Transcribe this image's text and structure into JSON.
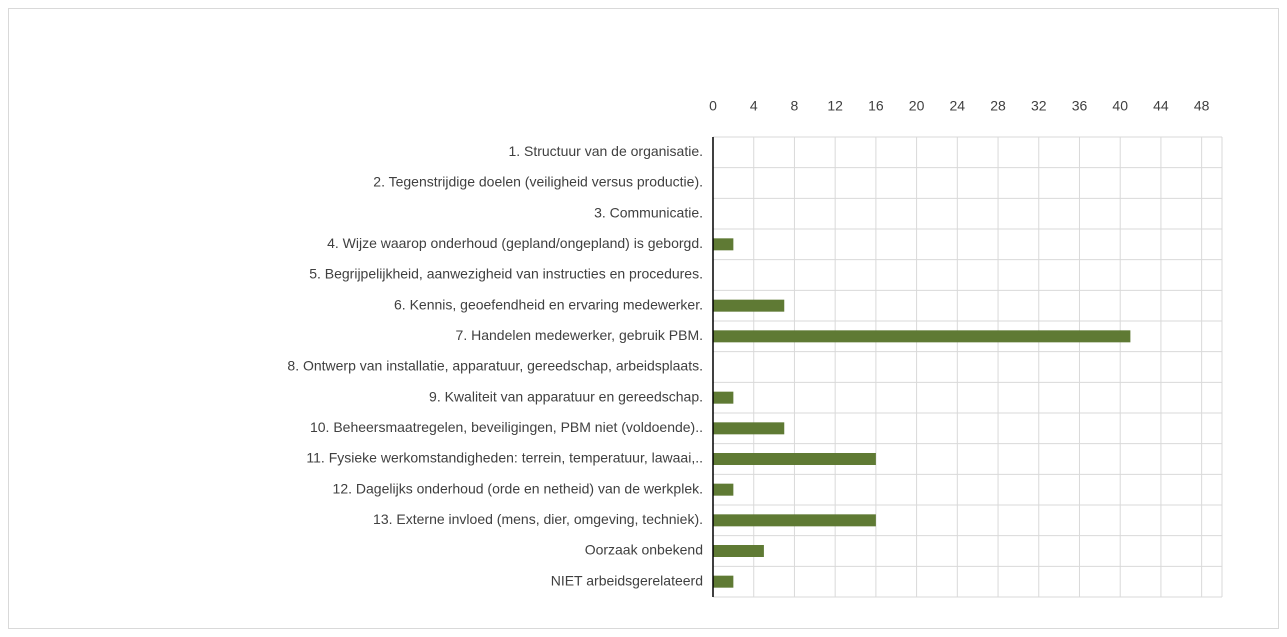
{
  "chart_data": {
    "type": "barh",
    "categories": [
      "1. Structuur van de organisatie.",
      "2. Tegenstrijdige doelen (veiligheid versus productie).",
      "3. Communicatie.",
      "4. Wijze waarop onderhoud (gepland/ongepland) is geborgd.",
      "5. Begrijpelijkheid, aanwezigheid van instructies en procedures.",
      "6. Kennis, geoefendheid en ervaring medewerker.",
      "7. Handelen medewerker, gebruik PBM.",
      "8. Ontwerp van installatie, apparatuur, gereedschap, arbeidsplaats.",
      "9. Kwaliteit van apparatuur en gereedschap.",
      "10. Beheersmaatregelen, beveiligingen, PBM niet (voldoende)..",
      "11. Fysieke werkomstandigheden: terrein, temperatuur, lawaai,..",
      "12. Dagelijks onderhoud (orde en netheid) van de werkplek.",
      "13. Externe invloed (mens, dier, omgeving, techniek).",
      "Oorzaak onbekend",
      "NIET arbeidsgerelateerd"
    ],
    "values": [
      0,
      0,
      0,
      2,
      0,
      7,
      41,
      0,
      2,
      7,
      16,
      2,
      16,
      5,
      2
    ],
    "color": "#5f7a34",
    "xlim": [
      0,
      50
    ],
    "xticks": [
      0,
      4,
      8,
      12,
      16,
      20,
      24,
      28,
      32,
      36,
      40,
      44,
      48
    ],
    "grid": true
  }
}
